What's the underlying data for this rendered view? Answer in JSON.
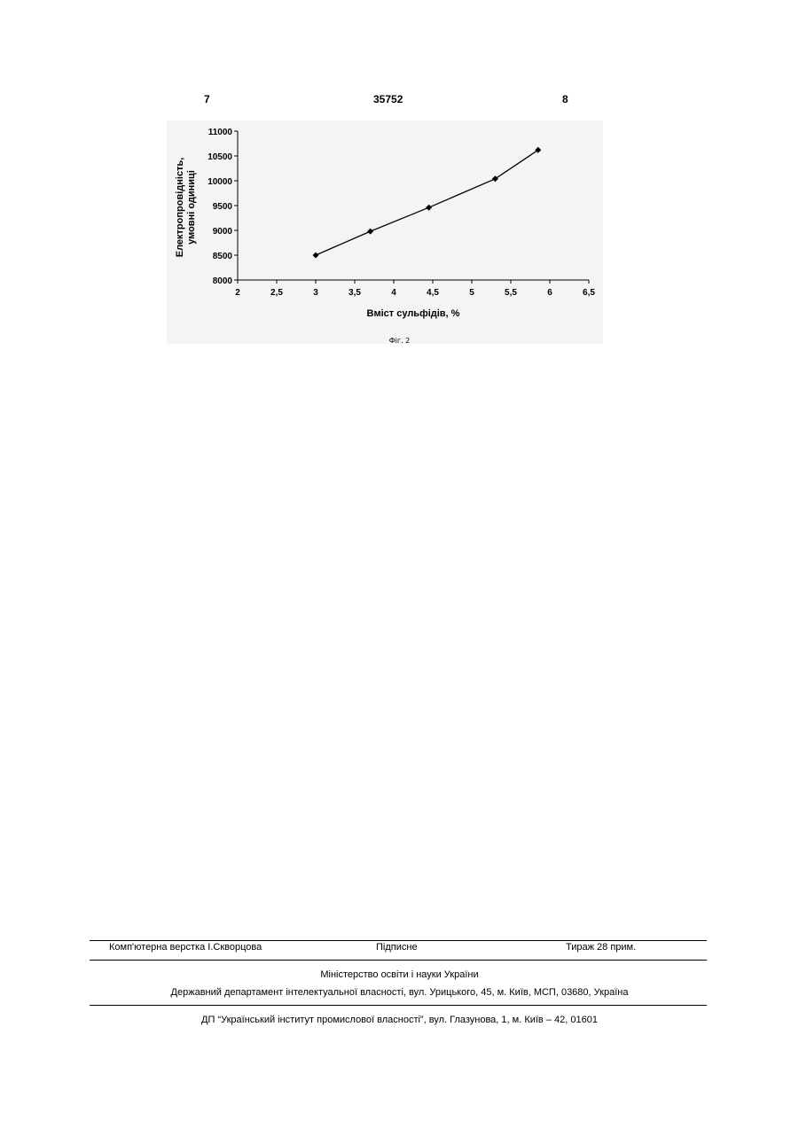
{
  "header": {
    "left_page": "7",
    "doc_number": "35752",
    "right_page": "8"
  },
  "chart_data": {
    "type": "line",
    "xlabel": "Вміст сульфідів, %",
    "ylabel_line1": "Електропровідність,",
    "ylabel_line2": "умовні одиниці",
    "xlim": [
      2,
      6.5
    ],
    "ylim": [
      8000,
      11000
    ],
    "x_ticks": [
      "2",
      "2,5",
      "3",
      "3,5",
      "4",
      "4,5",
      "5",
      "5,5",
      "6",
      "6,5"
    ],
    "y_ticks": [
      "8000",
      "8500",
      "9000",
      "9500",
      "10000",
      "10500",
      "11000"
    ],
    "x": [
      3.0,
      3.7,
      4.45,
      5.3,
      5.85
    ],
    "y": [
      8500,
      8980,
      9460,
      10040,
      10620
    ],
    "marker": "diamond",
    "color": "#000000"
  },
  "figure_caption": "Фіг. 2",
  "footer": {
    "layout_credit": "Комп'ютерна верстка І.Скворцова",
    "signed": "Підписне",
    "circulation": "Тираж 28 прим.",
    "ministry": "Міністерство освіти і науки України",
    "department": "Державний департамент інтелектуальної власності, вул. Урицького, 45, м. Київ, МСП, 03680, Україна",
    "institute": "ДП “Український інститут промислової власності”, вул. Глазунова, 1, м. Київ – 42, 01601"
  }
}
